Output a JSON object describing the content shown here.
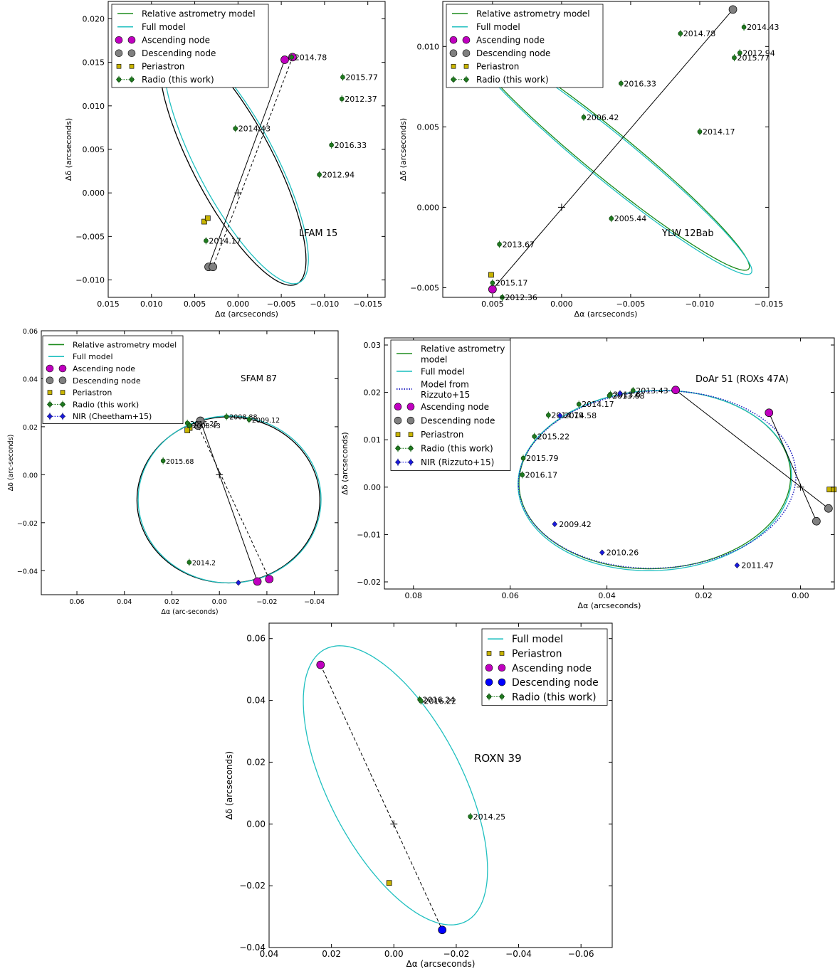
{
  "chart_data": [
    {
      "type": "scatter",
      "panel_label": "LFAM 15",
      "xlabel": "Δα (arcseconds)",
      "ylabel": "Δδ (arcseconds)",
      "xlim": [
        0.015,
        -0.017
      ],
      "ylim": [
        -0.012,
        0.022
      ],
      "xticks": [
        0.015,
        0.01,
        0.005,
        0.0,
        -0.005,
        -0.01,
        -0.015
      ],
      "xtick_labels": [
        "0.015",
        "0.010",
        "0.005",
        "0.000",
        "−0.005",
        "−0.010",
        "−0.015"
      ],
      "yticks": [
        -0.01,
        -0.005,
        0.0,
        0.005,
        0.01,
        0.015,
        0.02
      ],
      "ytick_labels": [
        "−0.010",
        "−0.005",
        "0.000",
        "0.005",
        "0.010",
        "0.015",
        "0.020"
      ],
      "legend": [
        "Relative astrometry model",
        "Full model",
        "Ascending node",
        "Descending node",
        "Periastron",
        "Radio (this work)"
      ],
      "orbits": [
        {
          "model": "Relative astrometry model",
          "color": "#000000",
          "center": [
            0.0006,
            0.0035
          ],
          "semi_axes": [
            0.0046,
            0.0158
          ],
          "rotation_deg": -28
        },
        {
          "model": "Full model",
          "color": "#20c0c0",
          "center": [
            0.0002,
            0.0035
          ],
          "semi_axes": [
            0.0045,
            0.0156
          ],
          "rotation_deg": -28
        }
      ],
      "ascending_node": [
        [
          -0.0054,
          0.0153
        ],
        [
          -0.0063,
          0.0156
        ]
      ],
      "descending_node": [
        [
          0.0034,
          -0.0085
        ],
        [
          0.0029,
          -0.0085
        ]
      ],
      "periastron": [
        [
          0.0039,
          -0.0033
        ],
        [
          0.0035,
          -0.0029
        ]
      ],
      "node_line": [
        [
          -0.0054,
          0.0153
        ],
        [
          0.0034,
          -0.0085
        ]
      ],
      "periastron_line": [
        [
          -0.0063,
          0.0156
        ],
        [
          0.0029,
          -0.0085
        ]
      ],
      "center": [
        0.0,
        0.0
      ],
      "radio": [
        {
          "epoch": "2014.78",
          "x": -0.0062,
          "y": 0.0156
        },
        {
          "epoch": "2015.77",
          "x": -0.0121,
          "y": 0.0133
        },
        {
          "epoch": "2012.37",
          "x": -0.012,
          "y": 0.0108
        },
        {
          "epoch": "2014.43",
          "x": 0.0003,
          "y": 0.0074
        },
        {
          "epoch": "2016.33",
          "x": -0.0108,
          "y": 0.0055
        },
        {
          "epoch": "2012.94",
          "x": -0.0094,
          "y": 0.0021
        },
        {
          "epoch": "2014.17",
          "x": 0.0037,
          "y": -0.0055
        }
      ]
    },
    {
      "type": "scatter",
      "panel_label": "YLW 12Bab",
      "xlabel": "Δα (arcseconds)",
      "ylabel": "Δδ (arcseconds)",
      "xlim": [
        0.0086,
        -0.015
      ],
      "ylim": [
        -0.0056,
        0.0128
      ],
      "xticks": [
        0.005,
        0.0,
        -0.005,
        -0.01,
        -0.015
      ],
      "xtick_labels": [
        "0.005",
        "0.000",
        "−0.005",
        "−0.010",
        "−0.015"
      ],
      "yticks": [
        -0.005,
        0.0,
        0.005,
        0.01
      ],
      "ytick_labels": [
        "−0.005",
        "0.000",
        "0.005",
        "0.010"
      ],
      "legend": [
        "Relative astrometry model",
        "Full model",
        "Ascending node",
        "Descending node",
        "Periastron",
        "Radio (this work)"
      ],
      "orbits": [
        {
          "model": "Relative astrometry model",
          "color": "#1a8a1a",
          "center": [
            -0.0034,
            0.0033
          ],
          "semi_axes": [
            0.0124,
            0.0015
          ],
          "rotation_deg": 35
        },
        {
          "model": "Full model",
          "color": "#20c0c0",
          "center": [
            -0.0035,
            0.0031
          ],
          "semi_axes": [
            0.0125,
            0.0015
          ],
          "rotation_deg": 35
        }
      ],
      "ascending_node": [
        [
          0.005,
          -0.0051
        ]
      ],
      "descending_node": [
        [
          -0.0124,
          0.0123
        ]
      ],
      "periastron": [
        [
          0.0051,
          -0.0042
        ]
      ],
      "node_line": [
        [
          0.005,
          -0.0051
        ],
        [
          -0.0124,
          0.0123
        ]
      ],
      "center": [
        0.0,
        0.0
      ],
      "radio": [
        {
          "epoch": "2014.43",
          "x": -0.0132,
          "y": 0.0112
        },
        {
          "epoch": "2014.78",
          "x": -0.0086,
          "y": 0.0108
        },
        {
          "epoch": "2012.94",
          "x": -0.0129,
          "y": 0.0096
        },
        {
          "epoch": "2015.77",
          "x": -0.0125,
          "y": 0.0093
        },
        {
          "epoch": "2016.33",
          "x": -0.0043,
          "y": 0.0077
        },
        {
          "epoch": "2006.42",
          "x": -0.0016,
          "y": 0.0056
        },
        {
          "epoch": "2014.17",
          "x": -0.01,
          "y": 0.0047
        },
        {
          "epoch": "2005.44",
          "x": -0.0036,
          "y": -0.0007
        },
        {
          "epoch": "2013.67",
          "x": 0.0045,
          "y": -0.0023
        },
        {
          "epoch": "2015.17",
          "x": 0.005,
          "y": -0.0047
        },
        {
          "epoch": "2012.36",
          "x": 0.0043,
          "y": -0.0056
        }
      ]
    },
    {
      "type": "scatter",
      "panel_label": "SFAM 87",
      "xlabel": "Δα (arc-seconds)",
      "ylabel": "Δδ (arc-seconds)",
      "xlim": [
        0.075,
        -0.05
      ],
      "ylim": [
        -0.05,
        0.06
      ],
      "xticks": [
        0.06,
        0.04,
        0.02,
        0.0,
        -0.02,
        -0.04
      ],
      "xtick_labels": [
        "0.06",
        "0.04",
        "0.02",
        "0.00",
        "−0.02",
        "−0.04"
      ],
      "yticks": [
        -0.04,
        -0.02,
        0.0,
        0.02,
        0.04,
        0.06
      ],
      "ytick_labels": [
        "−0.04",
        "−0.02",
        "0.00",
        "0.02",
        "0.04",
        "0.06"
      ],
      "legend": [
        "Relative astrometry model",
        "Full model",
        "Ascending node",
        "Descending node",
        "Periastron",
        "Radio (this work)",
        "NIR (Cheetham+15)"
      ],
      "orbits": [
        {
          "model": "Relative astrometry model",
          "color": "#000000",
          "center": [
            -0.0038,
            -0.0105
          ],
          "semi_axes": [
            0.0385,
            0.0346
          ],
          "rotation_deg": 0
        },
        {
          "model": "Full model",
          "color": "#20c0c0",
          "center": [
            -0.0043,
            -0.0103
          ],
          "semi_axes": [
            0.0385,
            0.0348
          ],
          "rotation_deg": 0
        }
      ],
      "ascending_node": [
        [
          -0.016,
          -0.0445
        ],
        [
          -0.021,
          -0.0435
        ]
      ],
      "descending_node": [
        [
          0.008,
          0.0225
        ],
        [
          0.009,
          0.0205
        ]
      ],
      "periastron": [
        [
          0.0125,
          0.0195
        ],
        [
          0.0135,
          0.0185
        ]
      ],
      "node_line": [
        [
          -0.016,
          -0.0445
        ],
        [
          0.008,
          0.0225
        ]
      ],
      "periastron_line": [
        [
          -0.021,
          -0.0435
        ],
        [
          0.009,
          0.0205
        ]
      ],
      "center": [
        0.0,
        0.0
      ],
      "radio": [
        {
          "epoch": "2016.25",
          "x": 0.0135,
          "y": 0.0215
        },
        {
          "epoch": "2008.88",
          "x": -0.003,
          "y": 0.0242
        },
        {
          "epoch": "2009.12",
          "x": -0.0125,
          "y": 0.023
        },
        {
          "epoch": "2008.43",
          "x": 0.0125,
          "y": 0.0205
        },
        {
          "epoch": "2015.68",
          "x": 0.0237,
          "y": 0.0058
        },
        {
          "epoch": "2014.2",
          "x": 0.0127,
          "y": -0.0365
        }
      ],
      "nir": [
        {
          "x": -0.008,
          "y": -0.045
        }
      ]
    },
    {
      "type": "scatter",
      "panel_label": "DoAr 51 (ROXs 47A)",
      "xlabel": "Δα (arcseconds)",
      "ylabel": "Δδ (arcseconds)",
      "xlim": [
        0.086,
        -0.007
      ],
      "ylim": [
        -0.0215,
        0.0315
      ],
      "xticks": [
        0.08,
        0.06,
        0.04,
        0.02,
        0.0
      ],
      "xtick_labels": [
        "0.08",
        "0.06",
        "0.04",
        "0.02",
        "0.00"
      ],
      "yticks": [
        -0.02,
        -0.01,
        0.0,
        0.01,
        0.02,
        0.03
      ],
      "ytick_labels": [
        "−0.02",
        "−0.01",
        "0.00",
        "0.01",
        "0.02",
        "0.03"
      ],
      "legend": [
        "Relative astrometry model",
        "Full model",
        "Model from Rizzuto+15",
        "Ascending node",
        "Descending node",
        "Periastron",
        "Radio (this work)",
        "NIR (Rizzuto+15)"
      ],
      "orbits": [
        {
          "model": "Relative astrometry model",
          "color": "#1a8a1a",
          "center": [
            0.0301,
            0.0016
          ],
          "semi_axes": [
            0.0281,
            0.0188
          ],
          "rotation_deg": -3
        },
        {
          "model": "Full model",
          "color": "#20c0c0",
          "center": [
            0.0301,
            0.0014
          ],
          "semi_axes": [
            0.0283,
            0.019
          ],
          "rotation_deg": -3
        },
        {
          "model": "Model from Rizzuto+15",
          "color": "#2020c0",
          "center": [
            0.0296,
            0.0016
          ],
          "semi_axes": [
            0.0287,
            0.0187
          ],
          "rotation_deg": -3
        }
      ],
      "ascending_node": [
        [
          0.0258,
          0.0205
        ],
        [
          0.0065,
          0.0157
        ]
      ],
      "descending_node": [
        [
          -0.0058,
          -0.0045
        ],
        [
          -0.0033,
          -0.0072
        ]
      ],
      "periastron": [
        [
          -0.006,
          -0.0005
        ],
        [
          -0.0069,
          -0.0005
        ]
      ],
      "node_lines": [
        [
          [
            0.0258,
            0.0205
          ],
          [
            -0.0058,
            -0.0045
          ]
        ],
        [
          [
            0.0065,
            0.0157
          ],
          [
            -0.0033,
            -0.0072
          ]
        ]
      ],
      "center": [
        0.0,
        0.0
      ],
      "radio": [
        {
          "epoch": "2013.6",
          "x": 0.0393,
          "y": 0.0196
        },
        {
          "epoch": "2013.43",
          "x": 0.0346,
          "y": 0.0204
        },
        {
          "epoch": "2013.68",
          "x": 0.0395,
          "y": 0.0193
        },
        {
          "epoch": "2014.17",
          "x": 0.0458,
          "y": 0.0175
        },
        {
          "epoch": "2014.79",
          "x": 0.0521,
          "y": 0.0152
        },
        {
          "epoch": "2015.22",
          "x": 0.055,
          "y": 0.0107
        },
        {
          "epoch": "2015.79",
          "x": 0.0573,
          "y": 0.0061
        },
        {
          "epoch": "2016.17",
          "x": 0.0575,
          "y": 0.0026
        }
      ],
      "nir": [
        {
          "epoch": "2014.58",
          "x": 0.0497,
          "y": 0.0151
        },
        {
          "epoch": "",
          "x": 0.0373,
          "y": 0.0198
        },
        {
          "epoch": "2009.42",
          "x": 0.0508,
          "y": -0.0078
        },
        {
          "epoch": "2010.26",
          "x": 0.041,
          "y": -0.0138
        },
        {
          "epoch": "2011.47",
          "x": 0.0131,
          "y": -0.0165
        }
      ]
    },
    {
      "type": "scatter",
      "panel_label": "ROXN 39",
      "xlabel": "Δα (arcseconds)",
      "ylabel": "Δδ (arcseconds)",
      "xlim": [
        0.04,
        -0.07
      ],
      "ylim": [
        -0.04,
        0.065
      ],
      "xticks": [
        0.04,
        0.02,
        0.0,
        -0.02,
        -0.04,
        -0.06
      ],
      "xtick_labels": [
        "0.04",
        "0.02",
        "0.00",
        "−0.02",
        "−0.04",
        "−0.06"
      ],
      "yticks": [
        -0.04,
        -0.02,
        0.0,
        0.02,
        0.04,
        0.06
      ],
      "ytick_labels": [
        "−0.04",
        "−0.02",
        "0.00",
        "0.02",
        "0.04",
        "0.06"
      ],
      "legend": [
        "Full model",
        "Periastron",
        "Ascending node",
        "Descending node",
        "Radio (this work)"
      ],
      "orbits": [
        {
          "model": "Full model",
          "color": "#20c0c0",
          "center": [
            -0.0005,
            0.0125
          ],
          "semi_axes": [
            0.0215,
            0.0495
          ],
          "rotation_deg": -27
        }
      ],
      "ascending_node": [
        [
          0.0235,
          0.0515
        ]
      ],
      "descending_node": [
        [
          -0.0155,
          -0.0343
        ]
      ],
      "periastron": [
        [
          0.0015,
          -0.0191
        ]
      ],
      "node_line": [
        [
          0.0235,
          0.0515
        ],
        [
          -0.0155,
          -0.0343
        ]
      ],
      "center": [
        0.0,
        0.0
      ],
      "radio": [
        {
          "epoch": "2016.24",
          "x": -0.0083,
          "y": 0.0403
        },
        {
          "epoch": "2016.22",
          "x": -0.0087,
          "y": 0.0398
        },
        {
          "epoch": "2014.25",
          "x": -0.0245,
          "y": 0.0024
        }
      ]
    }
  ],
  "colors": {
    "relative_astrometry": "#1a8a1a",
    "full_model": "#20c0c0",
    "rizzuto_model": "#2020c0",
    "ascending_node": "#c000c0",
    "descending_node_gray": "#808080",
    "descending_node_blue": "#0000ff",
    "periastron": "#c8b400",
    "radio": "#1f7a1f",
    "nir": "#1a1adc",
    "node_line": "#000000"
  }
}
